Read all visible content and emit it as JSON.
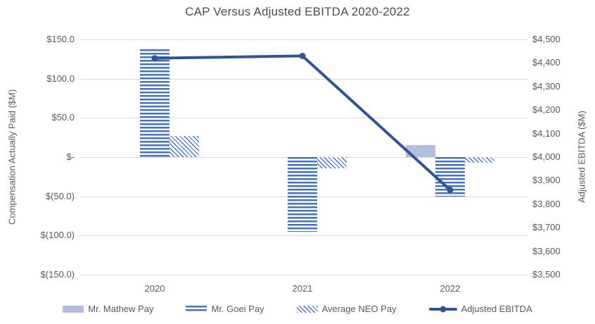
{
  "title": "CAP Versus Adjusted EBITDA 2020-2022",
  "chart_data": {
    "type": "combo-bar-line",
    "categories": [
      "2020",
      "2021",
      "2022"
    ],
    "series": [
      {
        "name": "Mr. Mathew Pay",
        "chart": "bar",
        "pattern": "solid",
        "color": "#b3bedf",
        "axis": "left",
        "values": [
          0,
          0,
          15
        ]
      },
      {
        "name": "Mr. Goei Pay",
        "chart": "bar",
        "pattern": "hstripe",
        "color": "#4472c4",
        "axis": "left",
        "values": [
          137.5,
          -95,
          -50
        ]
      },
      {
        "name": "Average NEO Pay",
        "chart": "bar",
        "pattern": "hatch",
        "color": "#4472c4",
        "axis": "left",
        "values": [
          27,
          -14,
          -7
        ]
      },
      {
        "name": "Adjusted EBITDA",
        "chart": "line",
        "pattern": "line",
        "color": "#2f5597",
        "axis": "right",
        "values": [
          4420,
          4430,
          3860
        ]
      }
    ],
    "left_axis": {
      "title": "Compensation Actually Paid ($M)",
      "min": -150,
      "max": 150,
      "ticks": [
        {
          "label": "$150.0",
          "value": 150
        },
        {
          "label": "$100.0",
          "value": 100
        },
        {
          "label": "$50.0",
          "value": 50
        },
        {
          "label": "$-",
          "value": 0
        },
        {
          "label": "$(50.0)",
          "value": -50
        },
        {
          "label": "$(100.0)",
          "value": -100
        },
        {
          "label": "$(150.0)",
          "value": -150
        }
      ]
    },
    "right_axis": {
      "title": "Adjusted EBITDA ($M)",
      "min": 3500,
      "max": 4500,
      "ticks": [
        {
          "label": "$4,500",
          "value": 4500
        },
        {
          "label": "$4,400",
          "value": 4400
        },
        {
          "label": "$4,300",
          "value": 4300
        },
        {
          "label": "$4,200",
          "value": 4200
        },
        {
          "label": "$4,100",
          "value": 4100
        },
        {
          "label": "$4,000",
          "value": 4000
        },
        {
          "label": "$3,900",
          "value": 3900
        },
        {
          "label": "$3,800",
          "value": 3800
        },
        {
          "label": "$3,700",
          "value": 3700
        },
        {
          "label": "$3,600",
          "value": 3600
        },
        {
          "label": "$3,500",
          "value": 3500
        }
      ]
    },
    "grid": "horizontal",
    "legend_position": "bottom"
  },
  "style": {
    "text_color": "#595959",
    "grid_color": "#d9d9d9",
    "background": "#ffffff",
    "stripe_blue": "#4472c4",
    "solid_light_blue": "#b3bedf",
    "line_dark_blue": "#2f5597"
  }
}
